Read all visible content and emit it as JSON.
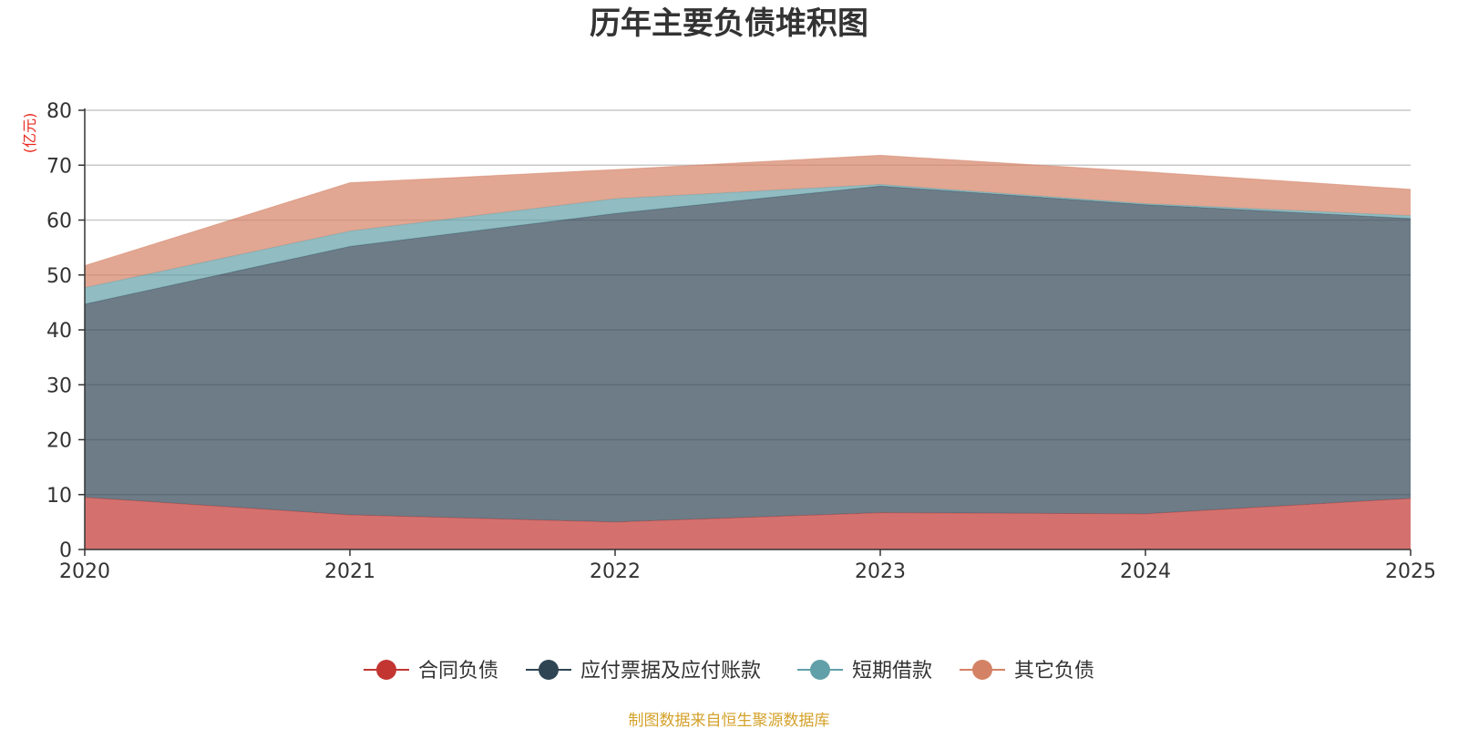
{
  "chart_data": {
    "type": "area",
    "stacked": true,
    "title": "历年主要负债堆积图",
    "ylabel": "(亿元)",
    "xlabel": "",
    "ylim": [
      0,
      80
    ],
    "yticks": [
      0,
      10,
      20,
      30,
      40,
      50,
      60,
      70,
      80
    ],
    "categories": [
      "2020",
      "2021",
      "2022",
      "2023",
      "2024",
      "2025"
    ],
    "series": [
      {
        "name": "合同负债",
        "color": "#c23531",
        "values": [
          9.5,
          6.3,
          5.0,
          6.7,
          6.5,
          9.3
        ]
      },
      {
        "name": "应付票据及应付账款",
        "color": "#2f4554",
        "values": [
          35.2,
          48.9,
          56.2,
          59.5,
          56.3,
          51.0
        ]
      },
      {
        "name": "短期借款",
        "color": "#61a0a8",
        "values": [
          3.0,
          2.8,
          2.7,
          0.3,
          0.2,
          0.5
        ]
      },
      {
        "name": "其它负债",
        "color": "#d48265",
        "values": [
          4.0,
          8.8,
          5.3,
          5.3,
          5.8,
          4.8
        ]
      }
    ],
    "grid": true,
    "legend_position": "bottom-center",
    "source_note": "制图数据来自恒生聚源数据库"
  },
  "colors": {
    "title": "#333333",
    "unit_label": "#e8261e",
    "source_note": "#d4a12a",
    "axis": "#333333",
    "gridline": "#c8c8c8"
  }
}
